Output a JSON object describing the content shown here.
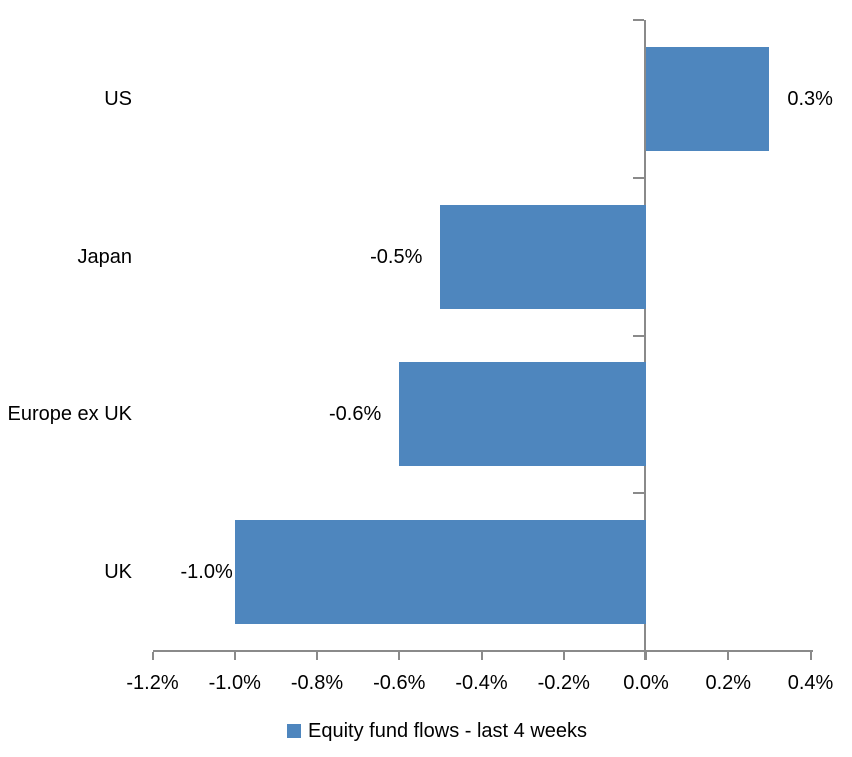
{
  "chart_data": {
    "type": "bar",
    "orientation": "horizontal",
    "title": "",
    "xlabel": "",
    "ylabel": "",
    "categories": [
      "US",
      "Japan",
      "Europe ex UK",
      "UK"
    ],
    "series": [
      {
        "name": "Equity fund flows - last 4 weeks",
        "values": [
          0.3,
          -0.5,
          -0.6,
          -1.0
        ],
        "data_labels": [
          "0.3%",
          "-0.5%",
          "-0.6%",
          "-1.0%"
        ]
      }
    ],
    "x_tick_labels": [
      "-1.2%",
      "-1.0%",
      "-0.8%",
      "-0.6%",
      "-0.4%",
      "-0.2%",
      "0.0%",
      "0.2%",
      "0.4%"
    ],
    "x_tick_values": [
      -1.2,
      -1.0,
      -0.8,
      -0.6,
      -0.4,
      -0.2,
      0.0,
      0.2,
      0.4
    ],
    "xlim": [
      -1.2,
      0.4
    ],
    "unit": "%",
    "grid": false,
    "legend_position": "bottom",
    "colors": {
      "bar": "#4E86BE",
      "axis": "#8A8A8A",
      "text": "#000000",
      "background": "#FFFFFF"
    }
  }
}
